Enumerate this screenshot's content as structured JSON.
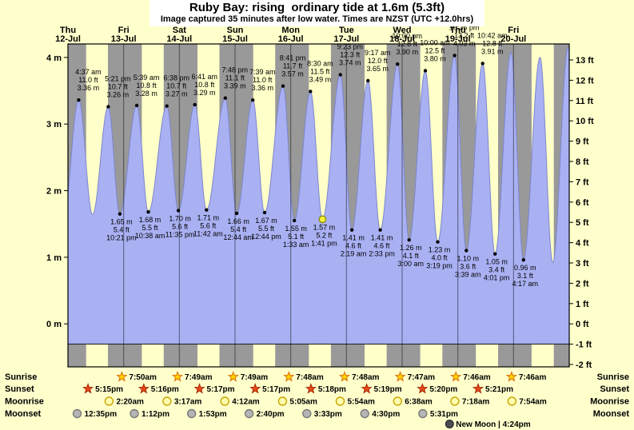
{
  "title": "Ruby Bay: rising  ordinary tide at 1.6m (5.3ft)",
  "subtitle": "Image captured 35 minutes after low water. Times are NZST (UTC +12.0hrs)",
  "colors": {
    "page_bg": "#ffffcc",
    "night_band": "#999999",
    "day_band": "#ffffc9",
    "tide_fill": "#a9b1f3",
    "tide_edge": "#7c86cf",
    "day_label": "#cc0000",
    "marker_fill": "#f3ef3d",
    "marker_edge": "#8a8a00"
  },
  "chart_data": {
    "type": "area",
    "title": "Ruby Bay: rising  ordinary tide at 1.6m (5.3ft)",
    "ylabel_left": "m",
    "ylabel_right": "ft",
    "ylim_m": [
      -0.66,
      4.2
    ],
    "days": [
      {
        "name": "Thu",
        "date": "12-Jul"
      },
      {
        "name": "Fri",
        "date": "13-Jul"
      },
      {
        "name": "Sat",
        "date": "14-Jul"
      },
      {
        "name": "Sun",
        "date": "15-Jul"
      },
      {
        "name": "Mon",
        "date": "16-Jul"
      },
      {
        "name": "Tue",
        "date": "17-Jul"
      },
      {
        "name": "Wed",
        "date": "18-Jul"
      },
      {
        "name": "Thu",
        "date": "19-Jul"
      },
      {
        "name": "Fri",
        "date": "20-Jul"
      }
    ],
    "y_axis_left": {
      "ticks": [
        {
          "label": "4 m",
          "value_m": 4
        },
        {
          "label": "3 m",
          "value_m": 3
        },
        {
          "label": "2 m",
          "value_m": 2
        },
        {
          "label": "1 m",
          "value_m": 1
        },
        {
          "label": "0 m",
          "value_m": 0
        }
      ]
    },
    "y_axis_right": {
      "ticks": [
        {
          "label": "13 ft",
          "value_ft": 13
        },
        {
          "label": "12 ft",
          "value_ft": 12
        },
        {
          "label": "11 ft",
          "value_ft": 11
        },
        {
          "label": "10 ft",
          "value_ft": 10
        },
        {
          "label": "9 ft",
          "value_ft": 9
        },
        {
          "label": "8 ft",
          "value_ft": 8
        },
        {
          "label": "7 ft",
          "value_ft": 7
        },
        {
          "label": "6 ft",
          "value_ft": 6
        },
        {
          "label": "5 ft",
          "value_ft": 5
        },
        {
          "label": "4 ft",
          "value_ft": 4
        },
        {
          "label": "3 ft",
          "value_ft": 3
        },
        {
          "label": "2 ft",
          "value_ft": 2
        },
        {
          "label": "1 ft",
          "value_ft": 1
        },
        {
          "label": "0 ft",
          "value_ft": 0
        },
        {
          "label": "-1 ft",
          "value_ft": -1
        },
        {
          "label": "-2 ft",
          "value_ft": -2
        }
      ]
    },
    "extremes": [
      {
        "kind": "high",
        "t": 4.62,
        "height_m": 3.36,
        "label_time": "4:37 am",
        "label_ft": "11.0 ft",
        "label_m": "3.36 m"
      },
      {
        "kind": "low",
        "t": 10.6,
        "height_m": 1.64
      },
      {
        "kind": "high",
        "t": 17.35,
        "height_m": 3.26,
        "label_time": "5:21 pm",
        "label_ft": "10.7 ft",
        "label_m": "3.26 m"
      },
      {
        "kind": "low",
        "t": 22.35,
        "height_m": 1.65,
        "label_time": "10:21 pm",
        "label_ft": "5.4 ft",
        "label_m": "1.65 m"
      },
      {
        "kind": "high",
        "t": 29.65,
        "height_m": 3.28,
        "label_time": "5:39 am",
        "label_ft": "10.8 ft",
        "label_m": "3.28 m"
      },
      {
        "kind": "low",
        "t": 34.63,
        "height_m": 1.68,
        "label_time": "10:38 am",
        "label_ft": "5.5 ft",
        "label_m": "1.68 m"
      },
      {
        "kind": "high",
        "t": 42.63,
        "height_m": 3.27,
        "label_time": "6:38 pm",
        "label_ft": "10.7 ft",
        "label_m": "3.27 m"
      },
      {
        "kind": "low",
        "t": 47.58,
        "height_m": 1.7,
        "label_time": "11:35 pm",
        "label_ft": "5.6 ft",
        "label_m": "1.70 m"
      },
      {
        "kind": "high",
        "t": 54.68,
        "height_m": 3.29,
        "label_time": "6:41 am",
        "label_ft": "10.8 ft",
        "label_m": "3.29 m"
      },
      {
        "kind": "low",
        "t": 59.7,
        "height_m": 1.71,
        "label_time": "11:42 am",
        "label_ft": "5.6 ft",
        "label_m": "1.71 m"
      },
      {
        "kind": "high",
        "t": 67.8,
        "height_m": 3.39,
        "label_time": "7:48 pm",
        "label_ft": "11.1 ft",
        "label_m": "3.39 m"
      },
      {
        "kind": "low",
        "t": 72.73,
        "height_m": 1.66,
        "label_time": "12:44 am",
        "label_ft": "5.4 ft",
        "label_m": "1.66 m"
      },
      {
        "kind": "high",
        "t": 79.65,
        "height_m": 3.36,
        "label_time": "7:39 am",
        "label_ft": "11.0 ft",
        "label_m": "3.36 m"
      },
      {
        "kind": "low",
        "t": 84.73,
        "height_m": 1.67,
        "label_time": "12:44 pm",
        "label_ft": "5.5 ft",
        "label_m": "1.67 m"
      },
      {
        "kind": "high",
        "t": 92.68,
        "height_m": 3.57,
        "label_time": "8:41 pm",
        "label_ft": "11.7 ft",
        "label_m": "3.57 m"
      },
      {
        "kind": "low",
        "t": 97.55,
        "height_m": 1.55,
        "label_time": "1:33 am",
        "label_ft": "5.1 ft",
        "label_m": "1.55 m"
      },
      {
        "kind": "high",
        "t": 104.5,
        "height_m": 3.49,
        "label_time": "8:30 am",
        "label_ft": "11.5 ft",
        "label_m": "3.49 m"
      },
      {
        "kind": "low",
        "t": 109.68,
        "height_m": 1.57,
        "label_time": "1:41 pm",
        "label_ft": "5.2 ft",
        "label_m": "1.57 m",
        "capture_marker": true
      },
      {
        "kind": "high",
        "t": 117.38,
        "height_m": 3.74,
        "label_time": "9:23 pm",
        "label_ft": "12.3 ft",
        "label_m": "3.74 m"
      },
      {
        "kind": "low",
        "t": 122.32,
        "height_m": 1.41,
        "label_time": "2:19 am",
        "label_ft": "4.6 ft",
        "label_m": "1.41 m"
      },
      {
        "kind": "high",
        "t": 129.28,
        "height_m": 3.65,
        "label_time": "9:17 am",
        "label_ft": "12.0 ft",
        "label_m": "3.65 m"
      },
      {
        "kind": "low",
        "t": 134.55,
        "height_m": 1.41,
        "label_time": "2:33 pm",
        "label_ft": "4.6 ft",
        "label_m": "1.41 m"
      },
      {
        "kind": "high",
        "t": 142.0,
        "height_m": 3.9,
        "label_time": "10:00 pm",
        "label_ft": "12.8 ft",
        "label_m": "3.90 m"
      },
      {
        "kind": "low",
        "t": 147.0,
        "height_m": 1.26,
        "label_time": "3:00 am",
        "label_ft": "4.1 ft",
        "label_m": "1.26 m"
      },
      {
        "kind": "high",
        "t": 154.0,
        "height_m": 3.8,
        "label_time": "10:00 am",
        "label_ft": "12.5 ft",
        "label_m": "3.80 m"
      },
      {
        "kind": "low",
        "t": 159.32,
        "height_m": 1.23,
        "label_time": "3:19 pm",
        "label_ft": "4.0 ft",
        "label_m": "1.23 m"
      },
      {
        "kind": "high",
        "t": 166.6,
        "height_m": 4.03,
        "label_time": "10:36 pm",
        "label_ft": "13.2 ft",
        "label_m": "4.03 m"
      },
      {
        "kind": "low",
        "t": 171.65,
        "height_m": 1.1,
        "label_time": "3:39 am",
        "label_ft": "3.6 ft",
        "label_m": "1.10 m"
      },
      {
        "kind": "high",
        "t": 178.7,
        "height_m": 3.91,
        "label_time": "10:42 am",
        "label_ft": "12.8 ft",
        "label_m": "3.91 m"
      },
      {
        "kind": "low",
        "t": 184.02,
        "height_m": 1.05,
        "label_time": "4:01 pm",
        "label_ft": "3.4 ft",
        "label_m": "1.05 m"
      },
      {
        "kind": "high",
        "t": 190.9,
        "height_m": 4.08
      },
      {
        "kind": "low",
        "t": 196.28,
        "height_m": 0.96,
        "label_time": "4:17 am",
        "label_ft": "3.1 ft",
        "label_m": "0.96 m"
      },
      {
        "kind": "high",
        "t": 203.4,
        "height_m": 4.0
      },
      {
        "kind": "low",
        "t": 208.9,
        "height_m": 0.92
      },
      {
        "kind": "high",
        "t": 215.5,
        "height_m": 4.15
      }
    ]
  },
  "astro": {
    "rows": [
      {
        "key": "sunrise",
        "label": "Sunrise",
        "entries": [
          {
            "day": 1,
            "time": "7:50am"
          },
          {
            "day": 2,
            "time": "7:49am"
          },
          {
            "day": 3,
            "time": "7:49am"
          },
          {
            "day": 4,
            "time": "7:48am"
          },
          {
            "day": 5,
            "time": "7:48am"
          },
          {
            "day": 6,
            "time": "7:47am"
          },
          {
            "day": 7,
            "time": "7:46am"
          },
          {
            "day": 8,
            "time": "7:46am"
          }
        ]
      },
      {
        "key": "sunset",
        "label": "Sunset",
        "entries": [
          {
            "day": 0,
            "time": "5:15pm"
          },
          {
            "day": 1,
            "time": "5:16pm"
          },
          {
            "day": 2,
            "time": "5:17pm"
          },
          {
            "day": 3,
            "time": "5:17pm"
          },
          {
            "day": 4,
            "time": "5:18pm"
          },
          {
            "day": 5,
            "time": "5:19pm"
          },
          {
            "day": 6,
            "time": "5:20pm"
          },
          {
            "day": 7,
            "time": "5:21pm"
          }
        ]
      },
      {
        "key": "moonrise",
        "label": "Moonrise",
        "entries": [
          {
            "day": 1,
            "time": "2:20am"
          },
          {
            "day": 2,
            "time": "3:17am"
          },
          {
            "day": 3,
            "time": "4:12am"
          },
          {
            "day": 4,
            "time": "5:05am"
          },
          {
            "day": 5,
            "time": "5:54am"
          },
          {
            "day": 6,
            "time": "6:38am"
          },
          {
            "day": 7,
            "time": "7:18am"
          },
          {
            "day": 8,
            "time": "7:54am"
          }
        ]
      },
      {
        "key": "moonset",
        "label": "Moonset",
        "entries": [
          {
            "day": 0,
            "time": "12:35pm"
          },
          {
            "day": 1,
            "time": "1:12pm"
          },
          {
            "day": 2,
            "time": "1:53pm"
          },
          {
            "day": 3,
            "time": "2:40pm"
          },
          {
            "day": 4,
            "time": "3:33pm"
          },
          {
            "day": 5,
            "time": "4:30pm"
          },
          {
            "day": 6,
            "time": "5:31pm"
          }
        ]
      }
    ],
    "moon_phase": {
      "label": "New Moon | 4:24pm",
      "day": 7,
      "time": "4:24pm"
    }
  }
}
